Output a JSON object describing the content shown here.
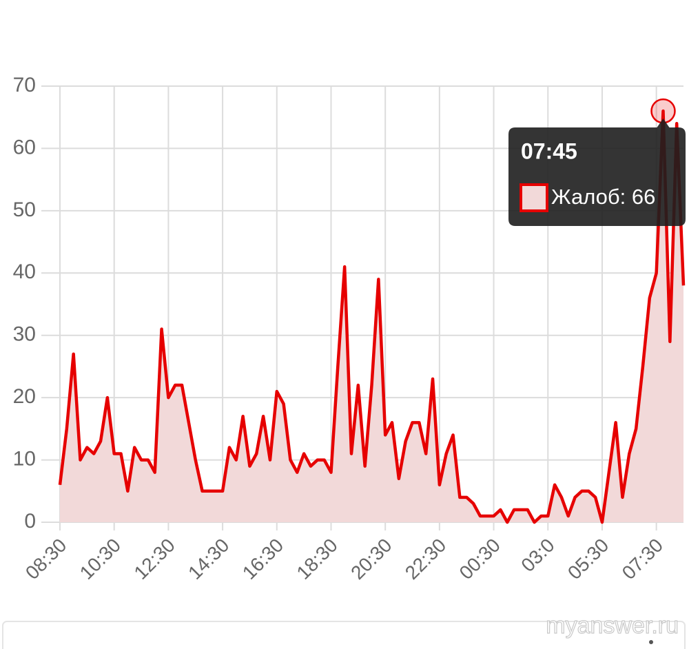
{
  "chart_data": {
    "type": "area",
    "categories": [
      "08:30",
      null,
      null,
      null,
      null,
      null,
      null,
      null,
      "10:30",
      null,
      null,
      null,
      null,
      null,
      null,
      null,
      "12:30",
      null,
      null,
      null,
      null,
      null,
      null,
      null,
      "14:30",
      null,
      null,
      null,
      null,
      null,
      null,
      null,
      "16:30",
      null,
      null,
      null,
      null,
      null,
      null,
      null,
      "18:30",
      null,
      null,
      null,
      null,
      null,
      null,
      null,
      "20:30",
      null,
      null,
      null,
      null,
      null,
      null,
      null,
      "22:30",
      null,
      null,
      null,
      null,
      null,
      null,
      null,
      "00:30",
      null,
      null,
      null,
      null,
      null,
      null,
      null,
      "03:0",
      null,
      null,
      null,
      null,
      null,
      null,
      null,
      "05:30",
      null,
      null,
      null,
      null,
      null,
      null,
      null,
      "07:30",
      null,
      null,
      null,
      null
    ],
    "series": [
      {
        "color": "#e60000",
        "fill": "#f2d9d9",
        "values": [
          6,
          15,
          27,
          10,
          12,
          11,
          13,
          20,
          11,
          11,
          5,
          12,
          10,
          10,
          8,
          31,
          20,
          22,
          22,
          16,
          10,
          5,
          5,
          5,
          5,
          12,
          10,
          17,
          9,
          11,
          17,
          10,
          21,
          19,
          10,
          8,
          11,
          9,
          10,
          10,
          8,
          25,
          41,
          11,
          22,
          9,
          22,
          39,
          14,
          16,
          7,
          13,
          16,
          16,
          11,
          23,
          6,
          11,
          14,
          4,
          4,
          3,
          1,
          1,
          1,
          2,
          0,
          2,
          2,
          2,
          0,
          1,
          1,
          6,
          4,
          1,
          4,
          5,
          5,
          4,
          0,
          8,
          16,
          4,
          11,
          15,
          25,
          36,
          40,
          66,
          29,
          64,
          38
        ]
      }
    ],
    "ylim": [
      0,
      70
    ],
    "yticks": [
      0,
      10,
      20,
      30,
      40,
      50,
      60,
      70
    ],
    "grid": true,
    "tooltip": {
      "index": 89,
      "title": "07:45",
      "label": "Жалоб: 66"
    },
    "watermark": "myanswer.ru"
  }
}
